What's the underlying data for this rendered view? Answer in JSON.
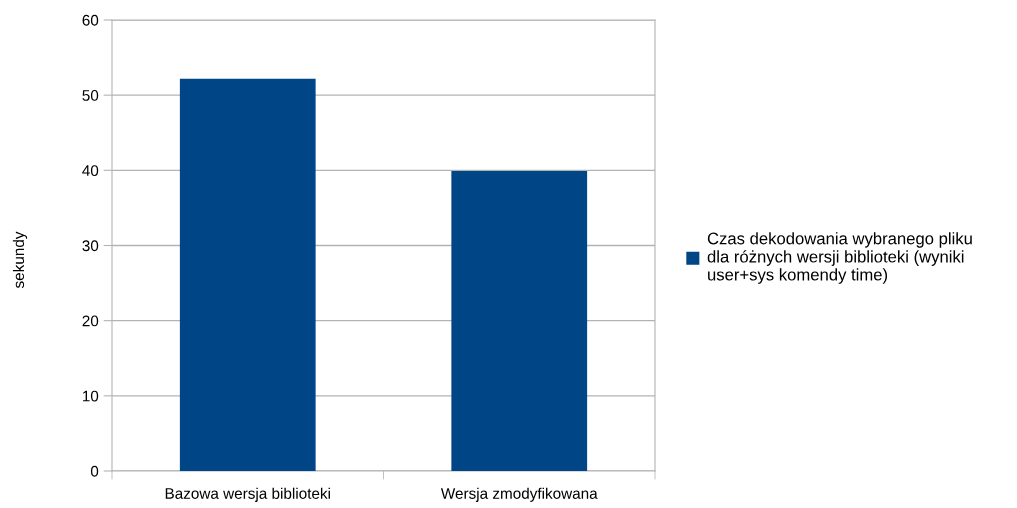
{
  "chart_data": {
    "type": "bar",
    "ylabel": "sekundy",
    "categories": [
      "Bazowa wersja biblioteki",
      "Wersja zmodyfikowana"
    ],
    "series": [
      {
        "name": "Czas dekodowania wybranego pliku\ndla różnych wersji biblioteki (wyniki\nuser+sys komendy time)",
        "color": "#004586",
        "values": [
          52.2,
          39.9
        ]
      }
    ],
    "ylim": [
      0,
      60
    ],
    "yticks": [
      0,
      10,
      20,
      30,
      40,
      50,
      60
    ],
    "grid": "y",
    "legend": "right"
  }
}
